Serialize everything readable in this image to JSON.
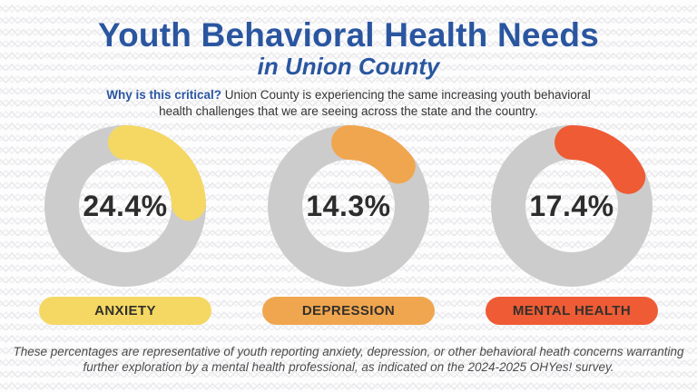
{
  "page": {
    "title": "Youth Behavioral Health Needs",
    "subtitle": "in Union County",
    "intro_lead": "Why is this critical?",
    "intro_text": " Union County is experiencing the same increasing youth behavioral health challenges that we are seeing across the state and the country.",
    "footer": "These percentages are representative of youth reporting anxiety, depression, or other behavioral heath concerns warranting further exploration by a mental health professional, as indicated on the 2024-2025 OHYes! survey."
  },
  "colors": {
    "title_blue": "#2A56A0",
    "ring_track_gray": "#CCCCCC",
    "anxiety_yellow": "#F5D863",
    "depression_orange": "#F0A64F",
    "mental_health_red": "#EE5B35",
    "value_text": "#2D2D2D",
    "background": "#FDFDFE",
    "pattern_line": "#E8E8EB"
  },
  "chart_data": {
    "type": "pie",
    "subtype": "donut-progress",
    "title": "Youth Behavioral Health Needs in Union County",
    "max": 100,
    "start_angle_deg": 0,
    "direction": "clockwise",
    "track_color": "#CCCCCC",
    "charts": [
      {
        "label": "ANXIETY",
        "value": 24.4,
        "display": "24.4%",
        "color": "#F5D863"
      },
      {
        "label": "DEPRESSION",
        "value": 14.3,
        "display": "14.3%",
        "color": "#F0A64F"
      },
      {
        "label": "MENTAL HEALTH",
        "value": 17.4,
        "display": "17.4%",
        "color": "#EE5B35"
      }
    ]
  }
}
